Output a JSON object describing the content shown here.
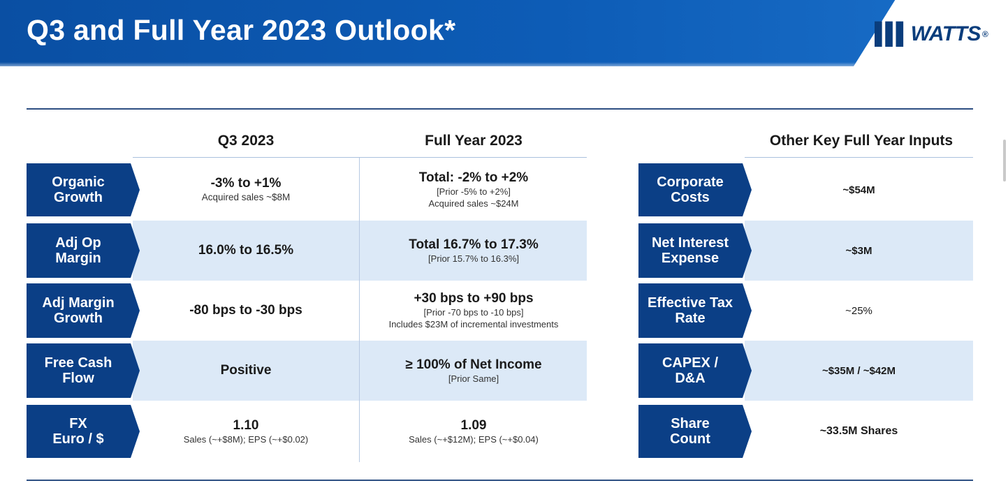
{
  "header": {
    "title": "Q3 and Full Year 2023 Outlook*",
    "logo_text": "WATTS",
    "logo_mark": "®"
  },
  "columns": {
    "q3": "Q3 2023",
    "fy": "Full Year 2023",
    "other": "Other Key Full Year Inputs"
  },
  "metrics": [
    {
      "label": "Organic\nGrowth",
      "q3_main": "-3% to +1%",
      "q3_sub": "Acquired sales ~$8M",
      "fy_main": "Total: -2% to +2%",
      "fy_sub1": "[Prior -5% to +2%]",
      "fy_sub2": "Acquired sales ~$24M"
    },
    {
      "label": "Adj Op\nMargin",
      "q3_main": "16.0% to 16.5%",
      "fy_main": "Total 16.7% to 17.3%",
      "fy_sub1": "[Prior 15.7% to 16.3%]"
    },
    {
      "label": "Adj Margin\nGrowth",
      "q3_main": "-80 bps to -30 bps",
      "fy_main": "+30 bps to +90 bps",
      "fy_sub1": "[Prior -70 bps to -10 bps]",
      "fy_sub2": "Includes $23M of incremental investments"
    },
    {
      "label": "Free Cash\nFlow",
      "q3_main": "Positive",
      "fy_main": "≥ 100% of Net Income",
      "fy_sub1": "[Prior Same]"
    },
    {
      "label": "FX\nEuro / $",
      "q3_main": "1.10",
      "q3_sub": "Sales (~+$8M); EPS (~+$0.02)",
      "fy_main": "1.09",
      "fy_sub1": "Sales (~+$12M); EPS (~+$0.04)"
    }
  ],
  "inputs": [
    {
      "label": "Corporate\nCosts",
      "value": "~$54M"
    },
    {
      "label": "Net Interest\nExpense",
      "value": "~$3M"
    },
    {
      "label": "Effective Tax\nRate",
      "value": "~25%"
    },
    {
      "label": "CAPEX /\nD&A",
      "value": "~$35M / ~$42M"
    },
    {
      "label": "Share\nCount",
      "value": "~33.5M Shares"
    }
  ],
  "colors": {
    "navy": "#0b3f86",
    "header_blue": "#0d5cb6",
    "band_blue": "#dce9f7"
  }
}
